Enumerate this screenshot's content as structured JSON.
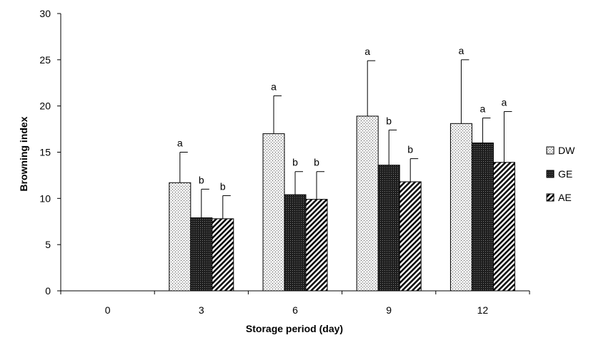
{
  "chart_data": {
    "type": "bar",
    "xlabel": "Storage period (day)",
    "ylabel": "Browning index",
    "categories": [
      "0",
      "3",
      "6",
      "9",
      "12"
    ],
    "ylim": [
      0,
      30
    ],
    "yticks": [
      "0",
      "5",
      "10",
      "15",
      "20",
      "25",
      "30"
    ],
    "grid": false,
    "legend_position": "right",
    "series": [
      {
        "name": "DW",
        "pattern": "dots",
        "values": [
          null,
          11.7,
          17.0,
          18.9,
          18.1
        ],
        "errors": [
          null,
          3.3,
          4.1,
          6.0,
          6.9
        ],
        "sig": [
          null,
          "a",
          "a",
          "a",
          "a"
        ]
      },
      {
        "name": "GE",
        "pattern": "dark-grid",
        "values": [
          null,
          7.9,
          10.4,
          13.6,
          16.0
        ],
        "errors": [
          null,
          3.1,
          2.5,
          3.8,
          2.7
        ],
        "sig": [
          null,
          "b",
          "b",
          "b",
          "a"
        ]
      },
      {
        "name": "AE",
        "pattern": "diagonal",
        "values": [
          null,
          7.8,
          9.9,
          11.8,
          13.9
        ],
        "errors": [
          null,
          2.5,
          3.0,
          2.5,
          5.5
        ],
        "sig": [
          null,
          "b",
          "b",
          "b",
          "a"
        ]
      }
    ]
  }
}
